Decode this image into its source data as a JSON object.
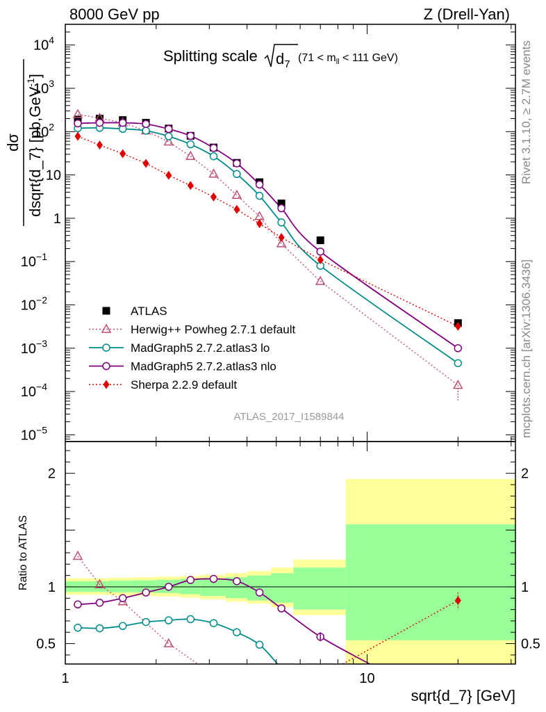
{
  "header": {
    "left": "8000 GeV pp",
    "right": "Z (Drell-Yan)"
  },
  "side_text": {
    "rivet": "Rivet 3.1.10, ≥ 2.7M events",
    "mcplots": "mcplots.cern.ch [arXiv:1306.3436]"
  },
  "watermark": "ATLAS_2017_I1589844",
  "chart_data": [
    {
      "type": "scatter",
      "panel": "main",
      "title": "Splitting scale √d₇ (71 < mₗₗ < 111 GeV)",
      "title_parts": {
        "main": "Splitting scale",
        "d": "d",
        "sub": "7",
        "range": "(71 < m",
        "range_sub": "ll",
        "range_end": " < 111 GeV)"
      },
      "ylabel": "dσ / dsqrt{d_7} [pb,GeV⁻¹]",
      "ylabel_parts": {
        "num": "dσ",
        "den": "dsqrt{d_7} [pb,GeV",
        "sup": "-1",
        "end": "]"
      },
      "xscale": "log",
      "yscale": "log",
      "xlim": [
        1,
        31
      ],
      "ylim": [
        7e-06,
        30000
      ],
      "ytick_labels": [
        {
          "v": 10000,
          "base": "10",
          "exp": "4"
        },
        {
          "v": 1000,
          "base": "10",
          "exp": "3"
        },
        {
          "v": 100,
          "base": "10",
          "exp": "2"
        },
        {
          "v": 10,
          "base": "10",
          "exp": ""
        },
        {
          "v": 1,
          "base": "1",
          "exp": ""
        },
        {
          "v": 0.1,
          "base": "10",
          "exp": "−1"
        },
        {
          "v": 0.01,
          "base": "10",
          "exp": "−2"
        },
        {
          "v": 0.001,
          "base": "10",
          "exp": "−3"
        },
        {
          "v": 0.0001,
          "base": "10",
          "exp": "−4"
        },
        {
          "v": 1e-05,
          "base": "10",
          "exp": "−5"
        }
      ],
      "legend_position": "lower-left",
      "series": [
        {
          "name": "ATLAS",
          "color": "#000000",
          "marker": "square",
          "line": "none",
          "x": [
            1.1,
            1.3,
            1.55,
            1.85,
            2.2,
            2.6,
            3.1,
            3.7,
            4.4,
            5.2,
            7.0,
            20.0
          ],
          "y": [
            190,
            200,
            185,
            160,
            118,
            80,
            43,
            19,
            6.8,
            2.2,
            0.31,
            0.0038
          ]
        },
        {
          "name": "Herwig++ Powheg 2.7.1 default",
          "color": "#c05070",
          "marker": "triangle-open",
          "line": "dotted",
          "x": [
            1.1,
            1.3,
            1.55,
            1.85,
            2.2,
            2.6,
            3.1,
            3.7,
            4.4,
            5.2,
            7.0,
            20.0
          ],
          "y": [
            250,
            205,
            160,
            105,
            58,
            27,
            10.5,
            3.4,
            1.1,
            0.26,
            0.035,
            0.00014
          ]
        },
        {
          "name": "MadGraph5 2.7.2.atlas3 lo",
          "color": "#008b8b",
          "marker": "circle-open",
          "line": "solid",
          "x": [
            1.1,
            1.3,
            1.55,
            1.85,
            2.2,
            2.6,
            3.1,
            3.7,
            4.4,
            5.2,
            7.0,
            20.0
          ],
          "y": [
            120,
            122,
            116,
            105,
            78,
            51,
            27,
            10.5,
            3.3,
            0.8,
            0.08,
            0.00045
          ]
        },
        {
          "name": "MadGraph5 2.7.2.atlas3 nlo",
          "color": "#800080",
          "marker": "circle-open",
          "line": "solid",
          "x": [
            1.1,
            1.3,
            1.55,
            1.85,
            2.2,
            2.6,
            3.1,
            3.7,
            4.4,
            5.2,
            7.0,
            20.0
          ],
          "y": [
            155,
            160,
            160,
            150,
            115,
            80,
            42,
            18.5,
            6.0,
            1.7,
            0.17,
            0.001
          ]
        },
        {
          "name": "Sherpa 2.2.9 default",
          "color": "#e00000",
          "marker": "diamond",
          "line": "dotted",
          "x": [
            1.1,
            1.3,
            1.55,
            1.85,
            2.2,
            2.6,
            3.1,
            3.7,
            4.4,
            5.2,
            7.0,
            20.0
          ],
          "y": [
            78,
            49,
            31,
            18.5,
            9.8,
            5.7,
            3.1,
            1.6,
            0.75,
            0.36,
            0.11,
            0.0032
          ]
        }
      ]
    },
    {
      "type": "line",
      "panel": "ratio",
      "ylabel": "Ratio to ATLAS",
      "xlabel": "sqrt{d_7} [GeV]",
      "xscale": "log",
      "xlim": [
        1,
        31
      ],
      "ylim": [
        0.32,
        2.28
      ],
      "xtick_labels": [
        {
          "v": 1,
          "label": "1"
        },
        {
          "v": 10,
          "label": "10"
        }
      ],
      "ytick_labels": [
        {
          "v": 0.5,
          "label": "0.5"
        },
        {
          "v": 1,
          "label": "1"
        },
        {
          "v": 2,
          "label": "2"
        }
      ],
      "bands": {
        "edges": [
          1.0,
          1.2,
          1.4,
          1.7,
          2.0,
          2.4,
          2.8,
          3.4,
          4.0,
          4.8,
          5.7,
          8.5,
          31.0
        ],
        "stat_sys": [
          [
            0.955,
            1.05
          ],
          [
            0.955,
            1.05
          ],
          [
            0.952,
            1.055
          ],
          [
            0.95,
            1.057
          ],
          [
            0.945,
            1.062
          ],
          [
            0.935,
            1.07
          ],
          [
            0.92,
            1.075
          ],
          [
            0.9,
            1.085
          ],
          [
            0.88,
            1.1
          ],
          [
            0.86,
            1.12
          ],
          [
            0.8,
            1.17
          ],
          [
            0.53,
            1.55
          ]
        ],
        "total": [
          [
            0.93,
            1.075
          ],
          [
            0.93,
            1.075
          ],
          [
            0.925,
            1.08
          ],
          [
            0.92,
            1.085
          ],
          [
            0.915,
            1.09
          ],
          [
            0.905,
            1.095
          ],
          [
            0.89,
            1.105
          ],
          [
            0.87,
            1.12
          ],
          [
            0.85,
            1.14
          ],
          [
            0.82,
            1.17
          ],
          [
            0.75,
            1.24
          ],
          [
            0.32,
            1.95
          ]
        ]
      },
      "series": [
        {
          "name": "Herwig++ Powheg 2.7.1 default",
          "x": [
            1.1,
            1.3,
            1.55,
            2.2,
            2.75
          ],
          "y": [
            1.27,
            1.02,
            0.87,
            0.5,
            0.32
          ]
        },
        {
          "name": "MadGraph5 2.7.2.atlas3 lo",
          "x": [
            1.1,
            1.3,
            1.55,
            1.85,
            2.2,
            2.6,
            3.1,
            3.7,
            4.4,
            5.05
          ],
          "y": [
            0.64,
            0.635,
            0.655,
            0.69,
            0.705,
            0.715,
            0.68,
            0.6,
            0.49,
            0.32
          ]
        },
        {
          "name": "MadGraph5 2.7.2.atlas3 nlo",
          "x": [
            1.1,
            1.3,
            1.55,
            1.85,
            2.2,
            2.6,
            3.1,
            3.7,
            4.4,
            5.2,
            7.0,
            10.2
          ],
          "y": [
            0.845,
            0.86,
            0.9,
            0.95,
            1.0,
            1.06,
            1.07,
            1.05,
            0.95,
            0.81,
            0.56,
            0.32
          ]
        },
        {
          "name": "Sherpa 2.2.9 default",
          "x": [
            8.3,
            20.0
          ],
          "y": [
            0.32,
            0.88
          ]
        }
      ]
    }
  ]
}
